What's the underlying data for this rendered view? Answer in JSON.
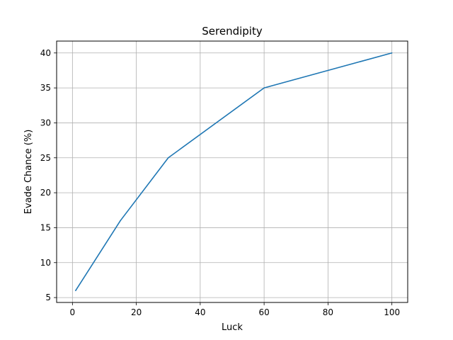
{
  "chart_data": {
    "type": "line",
    "title": "Serendipity",
    "xlabel": "Luck",
    "ylabel": "Evade Chance (%)",
    "xlim": [
      -4.95,
      104.95
    ],
    "ylim": [
      4.3,
      41.7
    ],
    "x_ticks": [
      0,
      20,
      40,
      60,
      80,
      100
    ],
    "y_ticks": [
      5,
      10,
      15,
      20,
      25,
      30,
      35,
      40
    ],
    "grid": true,
    "legend": "none",
    "series": [
      {
        "color": "#1f77b4",
        "x": [
          1,
          15,
          30,
          60,
          100
        ],
        "y": [
          6,
          16,
          25,
          35,
          40
        ]
      }
    ]
  }
}
